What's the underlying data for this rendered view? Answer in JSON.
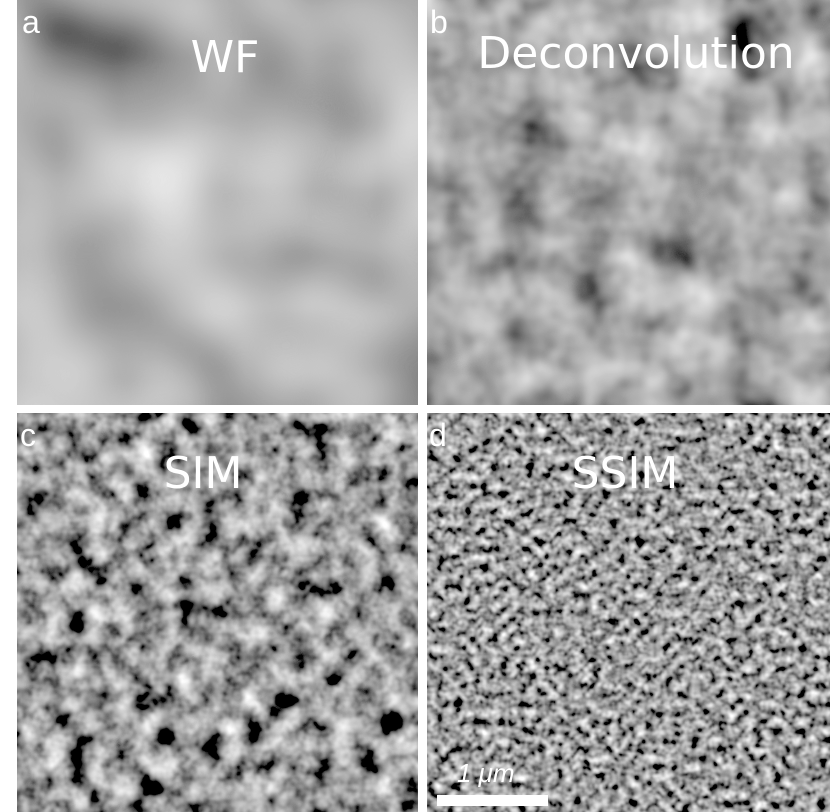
{
  "panels": [
    {
      "letter": "a",
      "title": "WF"
    },
    {
      "letter": "b",
      "title": "Deconvolution"
    },
    {
      "letter": "c",
      "title": "SIM"
    },
    {
      "letter": "d",
      "title": "SSIM"
    }
  ],
  "scale_bar": {
    "label": "1 μm"
  }
}
